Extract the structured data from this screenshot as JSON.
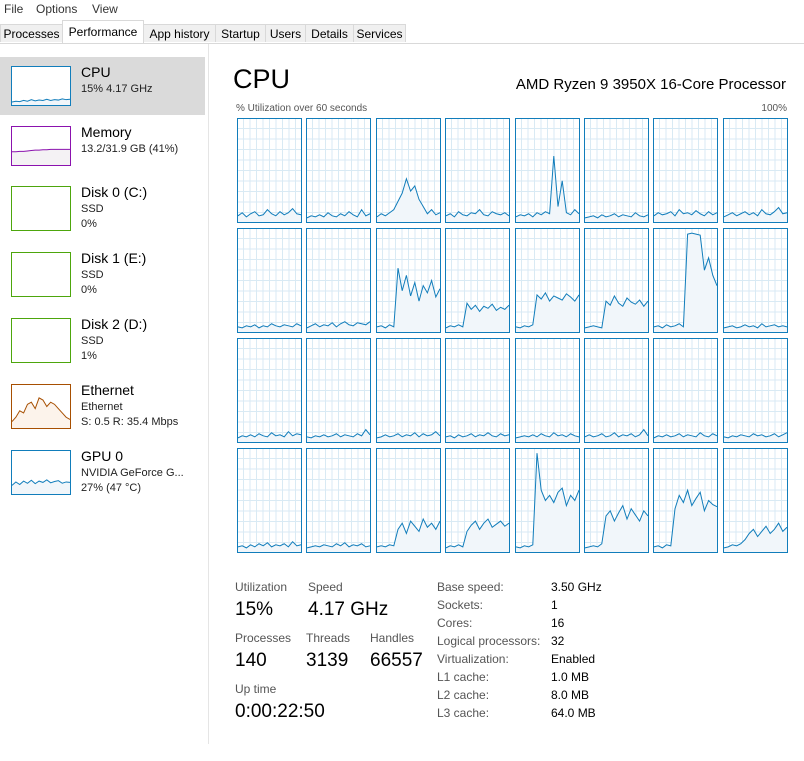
{
  "menu": [
    "File",
    "Options",
    "View"
  ],
  "tabs": [
    "Processes",
    "Performance",
    "App history",
    "Startup",
    "Users",
    "Details",
    "Services"
  ],
  "selected_tab": 1,
  "sidebar": [
    {
      "name": "CPU",
      "lines": [
        "15% 4.17 GHz"
      ],
      "color": "#117dbb",
      "fill": "#f1f6fa",
      "selected": true,
      "graph": [
        8,
        10,
        9,
        12,
        10,
        14,
        11,
        13,
        12,
        15,
        12,
        14,
        13,
        16,
        14,
        15
      ]
    },
    {
      "name": "Memory",
      "lines": [
        "13.2/31.9 GB (41%)"
      ],
      "color": "#8b12ae",
      "fill": "#f4f2f4",
      "graph": [
        35,
        35,
        36,
        36,
        37,
        38,
        39,
        39,
        40,
        40,
        41,
        41,
        41,
        41,
        41,
        41
      ]
    },
    {
      "name": "Disk 0 (C:)",
      "lines": [
        "SSD",
        "0%"
      ],
      "color": "#4da60c",
      "fill": "#effde0"
    },
    {
      "name": "Disk 1 (E:)",
      "lines": [
        "SSD",
        "0%"
      ],
      "color": "#4da60c",
      "fill": "#effde0"
    },
    {
      "name": "Disk 2 (D:)",
      "lines": [
        "SSD",
        "1%"
      ],
      "color": "#4da60c",
      "fill": "#effde0"
    },
    {
      "name": "Ethernet",
      "lines": [
        "Ethernet",
        "S: 0.5 R: 35.4 Mbps"
      ],
      "color": "#a74f01",
      "fill": "#fcf3eb",
      "graph": [
        15,
        25,
        40,
        35,
        55,
        60,
        45,
        70,
        65,
        50,
        60,
        55,
        45,
        35,
        25,
        20
      ]
    },
    {
      "name": "GPU 0",
      "lines": [
        "NVIDIA GeForce G...",
        "27% (47 °C)"
      ],
      "color": "#117dbb",
      "fill": "#f1f6fa",
      "graph": [
        20,
        28,
        22,
        30,
        25,
        32,
        24,
        30,
        27,
        33,
        26,
        29,
        31,
        25,
        28,
        27
      ]
    }
  ],
  "main": {
    "title": "CPU",
    "processor": "AMD Ryzen 9 3950X 16-Core Processor",
    "axis_label": "% Utilization over 60 seconds",
    "ymax_label": "100%",
    "ylim": [
      0,
      100
    ],
    "color": "#117dbb",
    "fill": "#f1f6fa",
    "grid_color": "#d9eaf4",
    "cores": [
      [
        6,
        9,
        5,
        8,
        10,
        6,
        7,
        12,
        8,
        6,
        10,
        7,
        9,
        13,
        8,
        7
      ],
      [
        4,
        6,
        5,
        7,
        5,
        9,
        6,
        5,
        8,
        6,
        10,
        7,
        5,
        12,
        6,
        8
      ],
      [
        5,
        8,
        6,
        9,
        12,
        20,
        28,
        42,
        30,
        35,
        22,
        15,
        8,
        12,
        7,
        9
      ],
      [
        6,
        8,
        5,
        10,
        7,
        6,
        9,
        8,
        12,
        7,
        6,
        10,
        8,
        7,
        9,
        6
      ],
      [
        5,
        7,
        6,
        8,
        5,
        9,
        7,
        10,
        8,
        64,
        15,
        40,
        9,
        7,
        12,
        8
      ],
      [
        4,
        5,
        6,
        4,
        7,
        5,
        6,
        8,
        5,
        7,
        6,
        5,
        9,
        6,
        5,
        7
      ],
      [
        6,
        9,
        7,
        8,
        10,
        6,
        12,
        8,
        9,
        7,
        11,
        8,
        6,
        10,
        7,
        9
      ],
      [
        5,
        7,
        9,
        6,
        8,
        10,
        7,
        9,
        6,
        12,
        8,
        7,
        10,
        14,
        8,
        9
      ],
      [
        5,
        4,
        6,
        5,
        7,
        4,
        6,
        5,
        8,
        6,
        5,
        7,
        6,
        5,
        8,
        6
      ],
      [
        4,
        6,
        8,
        5,
        7,
        6,
        9,
        5,
        8,
        10,
        7,
        6,
        9,
        8,
        7,
        10
      ],
      [
        5,
        6,
        4,
        7,
        5,
        62,
        40,
        55,
        35,
        48,
        30,
        45,
        38,
        50,
        34,
        42
      ],
      [
        4,
        6,
        5,
        7,
        5,
        28,
        22,
        26,
        20,
        25,
        23,
        27,
        21,
        24,
        22,
        26
      ],
      [
        5,
        4,
        6,
        5,
        7,
        36,
        32,
        38,
        30,
        35,
        33,
        31,
        37,
        34,
        30,
        36
      ],
      [
        4,
        5,
        6,
        5,
        4,
        30,
        26,
        35,
        28,
        25,
        33,
        29,
        27,
        31,
        25,
        30
      ],
      [
        5,
        6,
        4,
        7,
        5,
        6,
        8,
        5,
        95,
        96,
        95,
        94,
        60,
        72,
        55,
        45
      ],
      [
        4,
        5,
        6,
        4,
        5,
        7,
        5,
        6,
        4,
        8,
        5,
        6,
        7,
        5,
        6,
        5
      ],
      [
        4,
        6,
        5,
        7,
        5,
        8,
        6,
        5,
        9,
        6,
        7,
        5,
        10,
        6,
        8,
        7
      ],
      [
        5,
        4,
        6,
        5,
        7,
        5,
        6,
        8,
        5,
        7,
        6,
        5,
        8,
        6,
        12,
        7
      ],
      [
        4,
        5,
        7,
        5,
        6,
        8,
        5,
        7,
        6,
        9,
        5,
        8,
        6,
        7,
        10,
        6
      ],
      [
        5,
        6,
        4,
        7,
        5,
        6,
        8,
        5,
        7,
        6,
        9,
        6,
        5,
        8,
        6,
        7
      ],
      [
        4,
        5,
        6,
        5,
        7,
        5,
        8,
        6,
        5,
        9,
        6,
        7,
        5,
        8,
        6,
        5
      ],
      [
        5,
        7,
        5,
        6,
        8,
        5,
        6,
        9,
        5,
        7,
        6,
        8,
        5,
        7,
        12,
        6
      ],
      [
        4,
        6,
        5,
        7,
        5,
        6,
        8,
        5,
        7,
        6,
        5,
        9,
        6,
        5,
        8,
        6
      ],
      [
        5,
        4,
        6,
        5,
        7,
        6,
        5,
        8,
        6,
        7,
        5,
        6,
        8,
        5,
        7,
        9
      ],
      [
        5,
        6,
        4,
        7,
        5,
        8,
        6,
        9,
        5,
        7,
        6,
        8,
        5,
        10,
        6,
        7
      ],
      [
        4,
        5,
        6,
        5,
        7,
        6,
        5,
        8,
        6,
        9,
        5,
        7,
        6,
        8,
        5,
        6
      ],
      [
        5,
        6,
        5,
        7,
        6,
        22,
        28,
        18,
        30,
        25,
        20,
        32,
        24,
        28,
        22,
        30
      ],
      [
        4,
        6,
        5,
        7,
        5,
        20,
        26,
        30,
        22,
        28,
        32,
        24,
        27,
        30,
        25,
        28
      ],
      [
        5,
        4,
        6,
        5,
        7,
        96,
        60,
        50,
        55,
        48,
        58,
        62,
        45,
        55,
        50,
        60
      ],
      [
        4,
        5,
        6,
        5,
        8,
        35,
        40,
        30,
        38,
        45,
        32,
        42,
        36,
        30,
        40,
        35
      ],
      [
        5,
        6,
        4,
        7,
        6,
        42,
        55,
        48,
        60,
        45,
        52,
        58,
        40,
        50,
        46,
        44
      ],
      [
        4,
        5,
        7,
        6,
        8,
        12,
        18,
        22,
        15,
        20,
        25,
        18,
        22,
        28,
        20,
        24
      ]
    ],
    "stats": [
      {
        "label": "Utilization",
        "value": "15%"
      },
      {
        "label": "Speed",
        "value": "4.17 GHz"
      },
      {
        "label": "Processes",
        "value": "140"
      },
      {
        "label": "Threads",
        "value": "3139"
      },
      {
        "label": "Handles",
        "value": "66557"
      },
      {
        "label": "Up time",
        "value": "0:00:22:50"
      }
    ],
    "specs": [
      {
        "label": "Base speed:",
        "value": "3.50 GHz"
      },
      {
        "label": "Sockets:",
        "value": "1"
      },
      {
        "label": "Cores:",
        "value": "16"
      },
      {
        "label": "Logical processors:",
        "value": "32"
      },
      {
        "label": "Virtualization:",
        "value": "Enabled"
      },
      {
        "label": "L1 cache:",
        "value": "1.0 MB"
      },
      {
        "label": "L2 cache:",
        "value": "8.0 MB"
      },
      {
        "label": "L3 cache:",
        "value": "64.0 MB"
      }
    ]
  }
}
